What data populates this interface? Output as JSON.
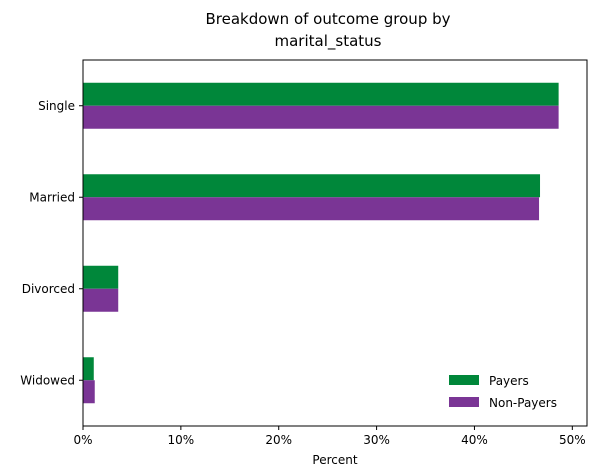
{
  "chart_data": {
    "type": "bar",
    "orientation": "horizontal",
    "title_lines": [
      "Breakdown of outcome group by",
      "marital_status"
    ],
    "xlabel": "Percent",
    "ylabel": "",
    "categories": [
      "Single",
      "Married",
      "Divorced",
      "Widowed"
    ],
    "series": [
      {
        "name": "Payers",
        "color": "#00873a",
        "values": [
          48.6,
          46.7,
          3.6,
          1.1
        ]
      },
      {
        "name": "Non-Payers",
        "color": "#7a3595",
        "values": [
          48.6,
          46.6,
          3.6,
          1.2
        ]
      }
    ],
    "xlim": [
      0,
      51.5
    ],
    "xticks": [
      0,
      10,
      20,
      30,
      40,
      50
    ],
    "xtick_labels": [
      "0%",
      "10%",
      "20%",
      "30%",
      "40%",
      "50%"
    ],
    "grid": false,
    "legend_position": "lower-right"
  }
}
